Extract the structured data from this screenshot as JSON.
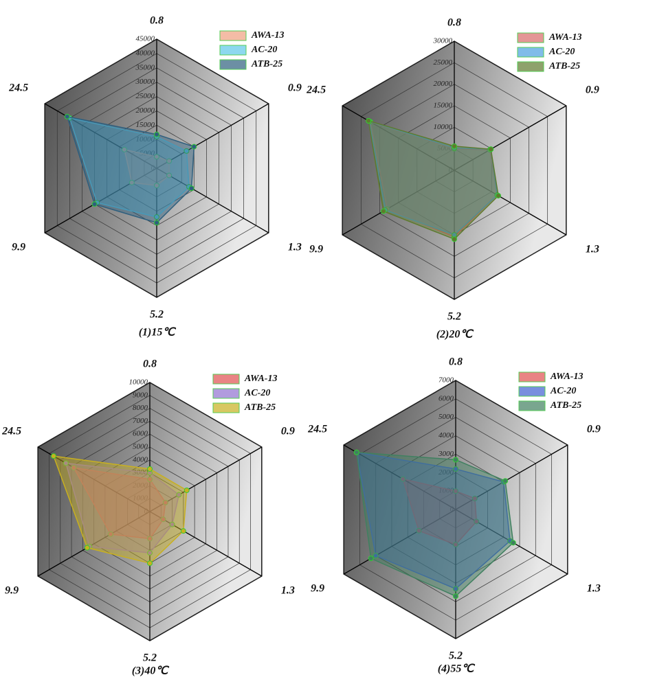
{
  "chart_data": [
    {
      "type": "radar",
      "title": "(1)15℃",
      "categories": [
        "0.8",
        "0.9",
        "1.3",
        "5.2",
        "9.9",
        "24.5"
      ],
      "rlim": [
        0,
        45000
      ],
      "rticks": [
        0,
        5000,
        10000,
        15000,
        20000,
        25000,
        30000,
        35000,
        40000,
        45000
      ],
      "legend": "upper right",
      "series": [
        {
          "name": "AWA-13",
          "color": "#f0a080",
          "values": [
            4000,
            5000,
            5000,
            6000,
            10000,
            13000
          ]
        },
        {
          "name": "AC-20",
          "color": "#5cc8e8",
          "values": [
            11000,
            12000,
            13000,
            17000,
            24000,
            35000
          ]
        },
        {
          "name": "ATB-25",
          "color": "#2e5f7e",
          "values": [
            11800,
            15000,
            14000,
            19000,
            25000,
            36000
          ]
        }
      ]
    },
    {
      "type": "radar",
      "title": "(2)20℃",
      "categories": [
        "0.8",
        "0.9",
        "1.3",
        "5.2",
        "9.9",
        "24.5"
      ],
      "rlim": [
        0,
        30000
      ],
      "rticks": [
        0,
        5000,
        10000,
        15000,
        20000,
        25000,
        30000
      ],
      "legend": "upper right",
      "series": [
        {
          "name": "AWA-13",
          "color": "#d86a6a",
          "values": [
            5000,
            9500,
            11500,
            15500,
            18000,
            22500
          ]
        },
        {
          "name": "AC-20",
          "color": "#4aa0e0",
          "values": [
            5200,
            9800,
            11500,
            15000,
            18500,
            22800
          ]
        },
        {
          "name": "ATB-25",
          "color": "#5e7a2e",
          "values": [
            5600,
            9800,
            11800,
            16000,
            19000,
            23000
          ]
        }
      ]
    },
    {
      "type": "radar",
      "title": "(3)40℃",
      "categories": [
        "0.8",
        "0.9",
        "1.3",
        "5.2",
        "9.9",
        "24.5"
      ],
      "rlim": [
        0,
        10000
      ],
      "rticks": [
        0,
        1000,
        2000,
        3000,
        4000,
        5000,
        6000,
        7000,
        8000,
        9000,
        10000
      ],
      "legend": "upper right",
      "series": [
        {
          "name": "AWA-13",
          "color": "#e05050",
          "values": [
            2500,
            1400,
            1200,
            2100,
            3500,
            6800
          ]
        },
        {
          "name": "AC-20",
          "color": "#9070d0",
          "values": [
            3000,
            2600,
            2000,
            3200,
            5400,
            7500
          ]
        },
        {
          "name": "ATB-25",
          "color": "#c8b020",
          "values": [
            3300,
            3300,
            3000,
            4000,
            5600,
            8600
          ]
        }
      ]
    },
    {
      "type": "radar",
      "title": "(4)55℃",
      "categories": [
        "0.8",
        "0.9",
        "1.3",
        "5.2",
        "9.9",
        "24.5"
      ],
      "rlim": [
        0,
        7000
      ],
      "rticks": [
        0,
        1000,
        2000,
        3000,
        4000,
        5000,
        6000,
        7000
      ],
      "legend": "upper right",
      "series": [
        {
          "name": "AWA-13",
          "color": "#e05050",
          "values": [
            1000,
            1200,
            1300,
            1900,
            2300,
            3300
          ]
        },
        {
          "name": "AC-20",
          "color": "#4060d0",
          "values": [
            2200,
            3000,
            3400,
            4300,
            5000,
            6200
          ]
        },
        {
          "name": "ATB-25",
          "color": "#408060",
          "values": [
            2700,
            3100,
            3600,
            4700,
            5300,
            6200
          ]
        }
      ]
    }
  ]
}
